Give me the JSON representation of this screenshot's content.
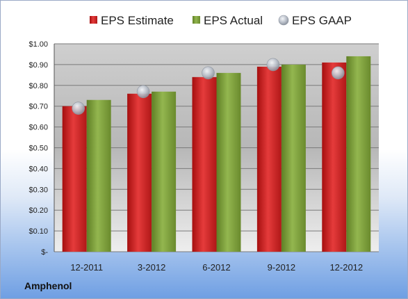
{
  "company": "Amphenol",
  "chart_data": {
    "type": "bar",
    "categories": [
      "12-2011",
      "3-2012",
      "6-2012",
      "9-2012",
      "12-2012"
    ],
    "series": [
      {
        "name": "EPS Estimate",
        "kind": "bar",
        "color": "#d42a2a",
        "values": [
          0.7,
          0.76,
          0.84,
          0.89,
          0.91
        ]
      },
      {
        "name": "EPS Actual",
        "kind": "bar",
        "color": "#7ea23d",
        "values": [
          0.73,
          0.77,
          0.86,
          0.9,
          0.94
        ]
      },
      {
        "name": "EPS GAAP",
        "kind": "marker",
        "color": "#b9bfc9",
        "values": [
          0.69,
          0.77,
          0.86,
          0.9,
          0.86
        ]
      }
    ],
    "yticks": [
      "$-",
      "$0.10",
      "$0.20",
      "$0.30",
      "$0.40",
      "$0.50",
      "$0.60",
      "$0.70",
      "$0.80",
      "$0.90",
      "$1.00"
    ],
    "ylim": [
      0,
      1.0
    ],
    "grid": true,
    "legend": "top"
  }
}
